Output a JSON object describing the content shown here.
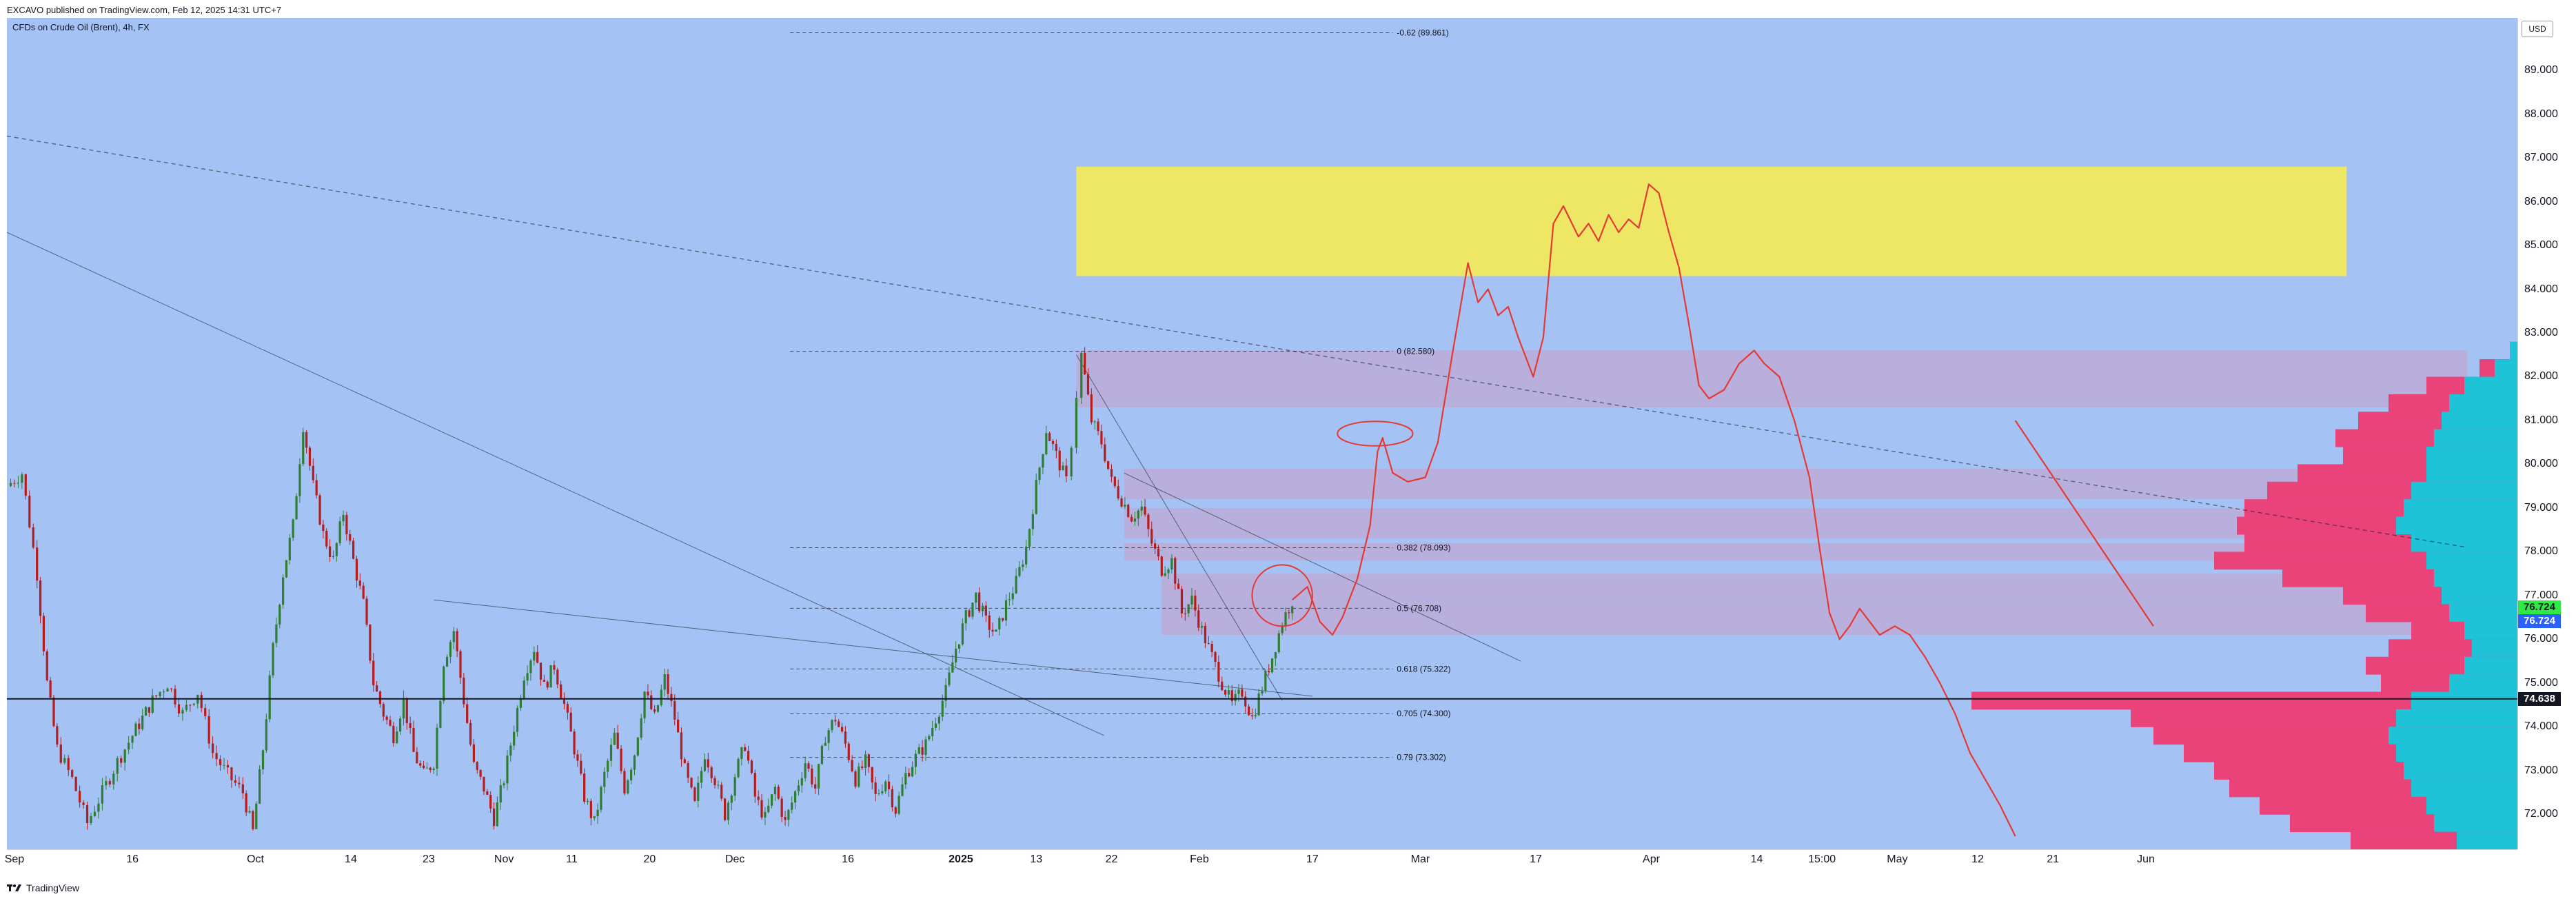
{
  "header": {
    "published": "EXCAVO published on TradingView.com, Feb 12, 2025 14:31 UTC+7"
  },
  "symbol": {
    "title": "CFDs on Crude Oil (Brent), 4h, FX"
  },
  "axis": {
    "currency": "USD"
  },
  "footer": {
    "brand": "TradingView"
  },
  "colors": {
    "background": "#a4c2f4",
    "zone_yellow": "#f2e95d",
    "zone_purple": "#c9a0c8",
    "profile_pink": "#e9437a",
    "profile_cyan": "#1ec3d8",
    "candle_up": "#2e7d32",
    "candle_down": "#b71c1c",
    "forecast": "#e53935"
  },
  "chart_data": {
    "type": "candlestick",
    "instrument": "CFDs on Crude Oil (Brent)",
    "timeframe": "4h",
    "ylim": [
      71.2,
      90.2
    ],
    "y_ticks": [
      72.0,
      73.0,
      74.0,
      75.0,
      76.0,
      77.0,
      78.0,
      79.0,
      80.0,
      81.0,
      82.0,
      83.0,
      84.0,
      85.0,
      86.0,
      87.0,
      88.0,
      89.0
    ],
    "y_tick_labels": [
      "72.000",
      "73.000",
      "74.000",
      "75.000",
      "76.000",
      "77.000",
      "78.000",
      "79.000",
      "80.000",
      "81.000",
      "82.000",
      "83.000",
      "84.000",
      "85.000",
      "86.000",
      "87.000",
      "88.000",
      "89.000"
    ],
    "x_ticks": [
      {
        "label": "Sep",
        "pos": 0.003,
        "bold": false
      },
      {
        "label": "16",
        "pos": 0.05,
        "bold": false
      },
      {
        "label": "Oct",
        "pos": 0.099,
        "bold": false
      },
      {
        "label": "14",
        "pos": 0.137,
        "bold": false
      },
      {
        "label": "23",
        "pos": 0.168,
        "bold": false
      },
      {
        "label": "Nov",
        "pos": 0.198,
        "bold": false
      },
      {
        "label": "11",
        "pos": 0.225,
        "bold": false
      },
      {
        "label": "20",
        "pos": 0.256,
        "bold": false
      },
      {
        "label": "Dec",
        "pos": 0.29,
        "bold": false
      },
      {
        "label": "16",
        "pos": 0.335,
        "bold": false
      },
      {
        "label": "2025",
        "pos": 0.38,
        "bold": true
      },
      {
        "label": "13",
        "pos": 0.41,
        "bold": false
      },
      {
        "label": "22",
        "pos": 0.44,
        "bold": false
      },
      {
        "label": "Feb",
        "pos": 0.475,
        "bold": false
      },
      {
        "label": "17",
        "pos": 0.52,
        "bold": false
      },
      {
        "label": "Mar",
        "pos": 0.563,
        "bold": false
      },
      {
        "label": "17",
        "pos": 0.609,
        "bold": false
      },
      {
        "label": "Apr",
        "pos": 0.655,
        "bold": false
      },
      {
        "label": "14",
        "pos": 0.697,
        "bold": false
      },
      {
        "label": "15:00",
        "pos": 0.723,
        "bold": false
      },
      {
        "label": "May",
        "pos": 0.753,
        "bold": false
      },
      {
        "label": "12",
        "pos": 0.785,
        "bold": false
      },
      {
        "label": "21",
        "pos": 0.815,
        "bold": false
      },
      {
        "label": "Jun",
        "pos": 0.852,
        "bold": false
      }
    ],
    "price_tags": [
      {
        "value": 76.724,
        "label": "76.724",
        "bg": "#2eea45",
        "fg": "#131722"
      },
      {
        "value": 76.724,
        "label": "76.724",
        "bg": "#2962ff",
        "fg": "#ffffff",
        "offset": 1
      },
      {
        "value": 74.638,
        "label": "74.638",
        "bg": "#131722",
        "fg": "#ffffff"
      }
    ],
    "fib_levels": [
      {
        "ratio": "-0.62",
        "price": 89.861,
        "label": "-0.62 (89.861)"
      },
      {
        "ratio": "0",
        "price": 82.58,
        "label": "0 (82.580)"
      },
      {
        "ratio": "0.382",
        "price": 78.093,
        "label": "0.382 (78.093)"
      },
      {
        "ratio": "0.5",
        "price": 76.708,
        "label": "0.5 (76.708)"
      },
      {
        "ratio": "0.618",
        "price": 75.322,
        "label": "0.618 (75.322)"
      },
      {
        "ratio": "0.705",
        "price": 74.3,
        "label": "0.705 (74.300)"
      },
      {
        "ratio": "0.79",
        "price": 73.302,
        "label": "0.79 (73.302)"
      }
    ],
    "support_line": 74.638,
    "zones": [
      {
        "kind": "yellow",
        "y_top": 86.8,
        "y_bottom": 84.3,
        "x0": 0.426,
        "x1": 0.932
      },
      {
        "kind": "purple",
        "y_top": 82.6,
        "y_bottom": 81.3,
        "x0": 0.426,
        "x1": 0.98
      },
      {
        "kind": "purple",
        "y_top": 79.9,
        "y_bottom": 79.2,
        "x0": 0.445,
        "x1": 0.98
      },
      {
        "kind": "purple",
        "y_top": 79.0,
        "y_bottom": 78.3,
        "x0": 0.445,
        "x1": 0.98
      },
      {
        "kind": "purple",
        "y_top": 78.2,
        "y_bottom": 77.8,
        "x0": 0.445,
        "x1": 0.98
      },
      {
        "kind": "purple",
        "y_top": 77.5,
        "y_bottom": 76.9,
        "x0": 0.46,
        "x1": 0.98
      },
      {
        "kind": "purple",
        "y_top": 76.9,
        "y_bottom": 76.1,
        "x0": 0.46,
        "x1": 0.98
      }
    ],
    "price_path": [
      [
        0.0,
        79.5
      ],
      [
        0.006,
        79.8
      ],
      [
        0.012,
        77.5
      ],
      [
        0.016,
        75.0
      ],
      [
        0.02,
        73.5
      ],
      [
        0.026,
        72.8
      ],
      [
        0.032,
        71.8
      ],
      [
        0.038,
        72.5
      ],
      [
        0.044,
        73.2
      ],
      [
        0.05,
        73.8
      ],
      [
        0.058,
        74.6
      ],
      [
        0.064,
        75.0
      ],
      [
        0.07,
        74.3
      ],
      [
        0.076,
        74.8
      ],
      [
        0.082,
        73.4
      ],
      [
        0.088,
        72.9
      ],
      [
        0.094,
        72.5
      ],
      [
        0.098,
        71.6
      ],
      [
        0.102,
        73.5
      ],
      [
        0.106,
        75.8
      ],
      [
        0.11,
        77.5
      ],
      [
        0.114,
        78.6
      ],
      [
        0.118,
        80.9
      ],
      [
        0.122,
        79.5
      ],
      [
        0.126,
        78.4
      ],
      [
        0.13,
        77.8
      ],
      [
        0.134,
        78.9
      ],
      [
        0.138,
        77.8
      ],
      [
        0.142,
        76.8
      ],
      [
        0.146,
        75.0
      ],
      [
        0.15,
        74.3
      ],
      [
        0.154,
        73.8
      ],
      [
        0.158,
        74.6
      ],
      [
        0.162,
        73.4
      ],
      [
        0.166,
        72.9
      ],
      [
        0.17,
        73.2
      ],
      [
        0.174,
        75.5
      ],
      [
        0.178,
        76.2
      ],
      [
        0.182,
        74.6
      ],
      [
        0.186,
        73.1
      ],
      [
        0.19,
        72.6
      ],
      [
        0.194,
        71.9
      ],
      [
        0.198,
        72.8
      ],
      [
        0.202,
        74.0
      ],
      [
        0.206,
        75.2
      ],
      [
        0.21,
        75.8
      ],
      [
        0.214,
        74.9
      ],
      [
        0.218,
        75.4
      ],
      [
        0.222,
        74.5
      ],
      [
        0.226,
        73.5
      ],
      [
        0.23,
        72.4
      ],
      [
        0.234,
        71.8
      ],
      [
        0.238,
        72.9
      ],
      [
        0.242,
        73.8
      ],
      [
        0.246,
        72.6
      ],
      [
        0.25,
        73.4
      ],
      [
        0.254,
        74.8
      ],
      [
        0.258,
        74.2
      ],
      [
        0.262,
        75.1
      ],
      [
        0.266,
        74.2
      ],
      [
        0.27,
        73.0
      ],
      [
        0.274,
        72.2
      ],
      [
        0.278,
        73.4
      ],
      [
        0.282,
        72.8
      ],
      [
        0.286,
        72.0
      ],
      [
        0.29,
        72.9
      ],
      [
        0.294,
        73.6
      ],
      [
        0.298,
        72.4
      ],
      [
        0.302,
        71.9
      ],
      [
        0.306,
        72.6
      ],
      [
        0.31,
        71.8
      ],
      [
        0.314,
        72.5
      ],
      [
        0.318,
        73.2
      ],
      [
        0.322,
        72.6
      ],
      [
        0.326,
        73.8
      ],
      [
        0.33,
        74.2
      ],
      [
        0.334,
        73.6
      ],
      [
        0.338,
        72.8
      ],
      [
        0.342,
        73.2
      ],
      [
        0.346,
        72.4
      ],
      [
        0.35,
        72.8
      ],
      [
        0.354,
        72.1
      ],
      [
        0.358,
        72.9
      ],
      [
        0.362,
        73.3
      ],
      [
        0.366,
        73.6
      ],
      [
        0.37,
        74.2
      ],
      [
        0.374,
        74.8
      ],
      [
        0.378,
        75.8
      ],
      [
        0.382,
        76.5
      ],
      [
        0.386,
        77.0
      ],
      [
        0.39,
        76.4
      ],
      [
        0.394,
        76.1
      ],
      [
        0.398,
        76.8
      ],
      [
        0.402,
        77.3
      ],
      [
        0.406,
        78.1
      ],
      [
        0.41,
        79.5
      ],
      [
        0.414,
        80.8
      ],
      [
        0.418,
        80.2
      ],
      [
        0.422,
        79.6
      ],
      [
        0.424,
        80.5
      ],
      [
        0.426,
        81.6
      ],
      [
        0.428,
        82.5
      ],
      [
        0.432,
        81.0
      ],
      [
        0.436,
        80.5
      ],
      [
        0.44,
        79.6
      ],
      [
        0.444,
        79.2
      ],
      [
        0.448,
        78.8
      ],
      [
        0.452,
        79.0
      ],
      [
        0.456,
        78.2
      ],
      [
        0.46,
        77.6
      ],
      [
        0.464,
        77.8
      ],
      [
        0.468,
        76.6
      ],
      [
        0.472,
        76.9
      ],
      [
        0.476,
        76.2
      ],
      [
        0.48,
        75.6
      ],
      [
        0.484,
        75.0
      ],
      [
        0.488,
        74.5
      ],
      [
        0.492,
        74.8
      ],
      [
        0.496,
        74.2
      ],
      [
        0.5,
        74.9
      ],
      [
        0.504,
        75.6
      ],
      [
        0.508,
        76.4
      ],
      [
        0.512,
        76.9
      ]
    ],
    "forecast_path": [
      [
        0.512,
        76.9
      ],
      [
        0.518,
        77.2
      ],
      [
        0.523,
        76.4
      ],
      [
        0.528,
        76.1
      ],
      [
        0.532,
        76.5
      ],
      [
        0.538,
        77.4
      ],
      [
        0.543,
        78.6
      ],
      [
        0.546,
        80.3
      ],
      [
        0.548,
        80.6
      ],
      [
        0.552,
        79.8
      ],
      [
        0.558,
        79.6
      ],
      [
        0.565,
        79.7
      ],
      [
        0.57,
        80.5
      ],
      [
        0.576,
        82.6
      ],
      [
        0.582,
        84.6
      ],
      [
        0.586,
        83.7
      ],
      [
        0.59,
        84.0
      ],
      [
        0.594,
        83.4
      ],
      [
        0.598,
        83.6
      ],
      [
        0.602,
        82.9
      ],
      [
        0.608,
        82.0
      ],
      [
        0.612,
        82.9
      ],
      [
        0.616,
        85.5
      ],
      [
        0.62,
        85.9
      ],
      [
        0.626,
        85.2
      ],
      [
        0.63,
        85.5
      ],
      [
        0.634,
        85.1
      ],
      [
        0.638,
        85.7
      ],
      [
        0.642,
        85.3
      ],
      [
        0.646,
        85.6
      ],
      [
        0.65,
        85.4
      ],
      [
        0.654,
        86.4
      ],
      [
        0.658,
        86.2
      ],
      [
        0.662,
        85.3
      ],
      [
        0.666,
        84.5
      ],
      [
        0.67,
        83.2
      ],
      [
        0.674,
        81.8
      ],
      [
        0.678,
        81.5
      ],
      [
        0.684,
        81.7
      ],
      [
        0.69,
        82.3
      ],
      [
        0.696,
        82.6
      ],
      [
        0.7,
        82.3
      ],
      [
        0.706,
        82.0
      ],
      [
        0.712,
        81.0
      ],
      [
        0.718,
        79.7
      ],
      [
        0.722,
        78.1
      ],
      [
        0.726,
        76.6
      ],
      [
        0.73,
        76.0
      ],
      [
        0.734,
        76.3
      ],
      [
        0.738,
        76.7
      ],
      [
        0.742,
        76.4
      ],
      [
        0.746,
        76.1
      ],
      [
        0.752,
        76.3
      ],
      [
        0.758,
        76.1
      ],
      [
        0.764,
        75.6
      ],
      [
        0.77,
        75.0
      ],
      [
        0.776,
        74.3
      ],
      [
        0.782,
        73.4
      ],
      [
        0.788,
        72.8
      ],
      [
        0.794,
        72.2
      ],
      [
        0.8,
        71.5
      ]
    ],
    "forecast_arrow": [
      [
        0.8,
        81.0
      ],
      [
        0.855,
        76.3
      ]
    ],
    "circles": [
      {
        "cx": 0.508,
        "cy": 77.0,
        "rx": 0.012,
        "ry": 0.7
      },
      {
        "cx": 0.545,
        "cy": 80.7,
        "rx": 0.015,
        "ry": 0.28
      }
    ],
    "trendlines": [
      {
        "x0": 0.0,
        "y0": 87.5,
        "x1": 0.98,
        "y1": 78.1,
        "dash": true
      },
      {
        "x0": 0.0,
        "y0": 85.3,
        "x1": 0.437,
        "y1": 73.8,
        "dash": false
      },
      {
        "x0": 0.17,
        "y0": 76.9,
        "x1": 0.52,
        "y1": 74.7,
        "dash": false
      },
      {
        "x0": 0.426,
        "y0": 82.5,
        "x1": 0.508,
        "y1": 74.6,
        "dash": false
      },
      {
        "x0": 0.445,
        "y0": 79.8,
        "x1": 0.603,
        "y1": 75.5,
        "dash": false
      }
    ],
    "volume_profile": {
      "y_bins": [
        82.6,
        82.2,
        81.8,
        81.4,
        81.0,
        80.6,
        80.2,
        79.8,
        79.4,
        79.0,
        78.6,
        78.2,
        77.8,
        77.4,
        77.0,
        76.6,
        76.2,
        75.8,
        75.4,
        75.0,
        74.6,
        74.2,
        73.8,
        73.4,
        73.0,
        72.6,
        72.2,
        71.8,
        71.4
      ],
      "total": [
        0.01,
        0.05,
        0.12,
        0.17,
        0.21,
        0.24,
        0.23,
        0.29,
        0.33,
        0.36,
        0.37,
        0.36,
        0.4,
        0.31,
        0.23,
        0.2,
        0.14,
        0.17,
        0.2,
        0.18,
        0.72,
        0.51,
        0.48,
        0.44,
        0.4,
        0.38,
        0.34,
        0.3,
        0.22
      ],
      "cyan": [
        0.01,
        0.03,
        0.07,
        0.09,
        0.1,
        0.11,
        0.12,
        0.12,
        0.14,
        0.15,
        0.16,
        0.14,
        0.12,
        0.11,
        0.1,
        0.09,
        0.07,
        0.06,
        0.07,
        0.09,
        0.14,
        0.16,
        0.17,
        0.16,
        0.15,
        0.14,
        0.12,
        0.11,
        0.08
      ]
    }
  }
}
